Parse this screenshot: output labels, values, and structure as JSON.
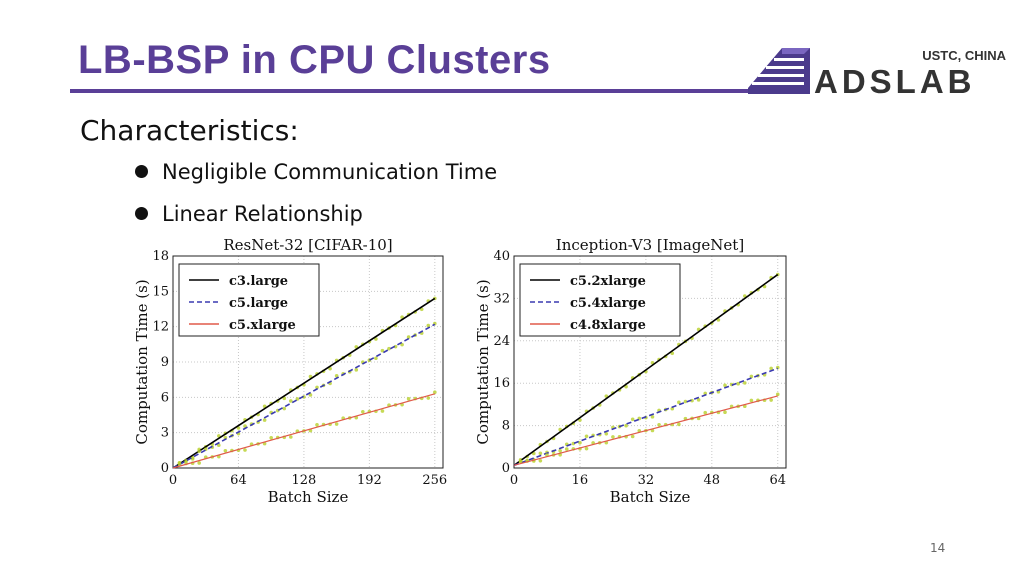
{
  "slide": {
    "title": "LB-BSP in CPU Clusters",
    "heading": "Characteristics:",
    "bullets": [
      "Negligible Communication Time",
      "Linear Relationship"
    ],
    "page_number": "14"
  },
  "logo": {
    "line1": "USTC, CHINA",
    "line2": "ADSLAB"
  },
  "chart_data": [
    {
      "type": "line",
      "title": "ResNet-32 [CIFAR-10]",
      "xlabel": "Batch Size",
      "ylabel": "Computation Time (s)",
      "xlim": [
        0,
        264
      ],
      "ylim": [
        0,
        18
      ],
      "xticks": [
        0,
        64,
        128,
        192,
        256
      ],
      "yticks": [
        0,
        3,
        6,
        9,
        12,
        15,
        18
      ],
      "grid": true,
      "legend_position": "top-left",
      "series": [
        {
          "name": "c3.large",
          "style": "solid",
          "color": "#000000",
          "x": [
            0,
            256
          ],
          "y": [
            0,
            14.4
          ]
        },
        {
          "name": "c5.large",
          "style": "dashed",
          "color": "#3a3ab0",
          "x": [
            0,
            256
          ],
          "y": [
            0,
            12.2
          ]
        },
        {
          "name": "c5.xlarge",
          "style": "solid",
          "color": "#e05a4a",
          "x": [
            0,
            256
          ],
          "y": [
            0,
            6.3
          ]
        }
      ]
    },
    {
      "type": "line",
      "title": "Inception-V3 [ImageNet]",
      "xlabel": "Batch Size",
      "ylabel": "Computation Time (s)",
      "xlim": [
        0,
        66
      ],
      "ylim": [
        0,
        40
      ],
      "xticks": [
        0,
        16,
        32,
        48,
        64
      ],
      "yticks": [
        0,
        8,
        16,
        24,
        32,
        40
      ],
      "grid": true,
      "legend_position": "top-left",
      "series": [
        {
          "name": "c5.2xlarge",
          "style": "solid",
          "color": "#000000",
          "x": [
            0,
            64
          ],
          "y": [
            0.5,
            36.5
          ]
        },
        {
          "name": "c5.4xlarge",
          "style": "dashed",
          "color": "#3a3ab0",
          "x": [
            0,
            64
          ],
          "y": [
            0.5,
            18.8
          ]
        },
        {
          "name": "c4.8xlarge",
          "style": "solid",
          "color": "#e05a4a",
          "x": [
            0,
            64
          ],
          "y": [
            0.5,
            13.6
          ]
        }
      ]
    }
  ]
}
